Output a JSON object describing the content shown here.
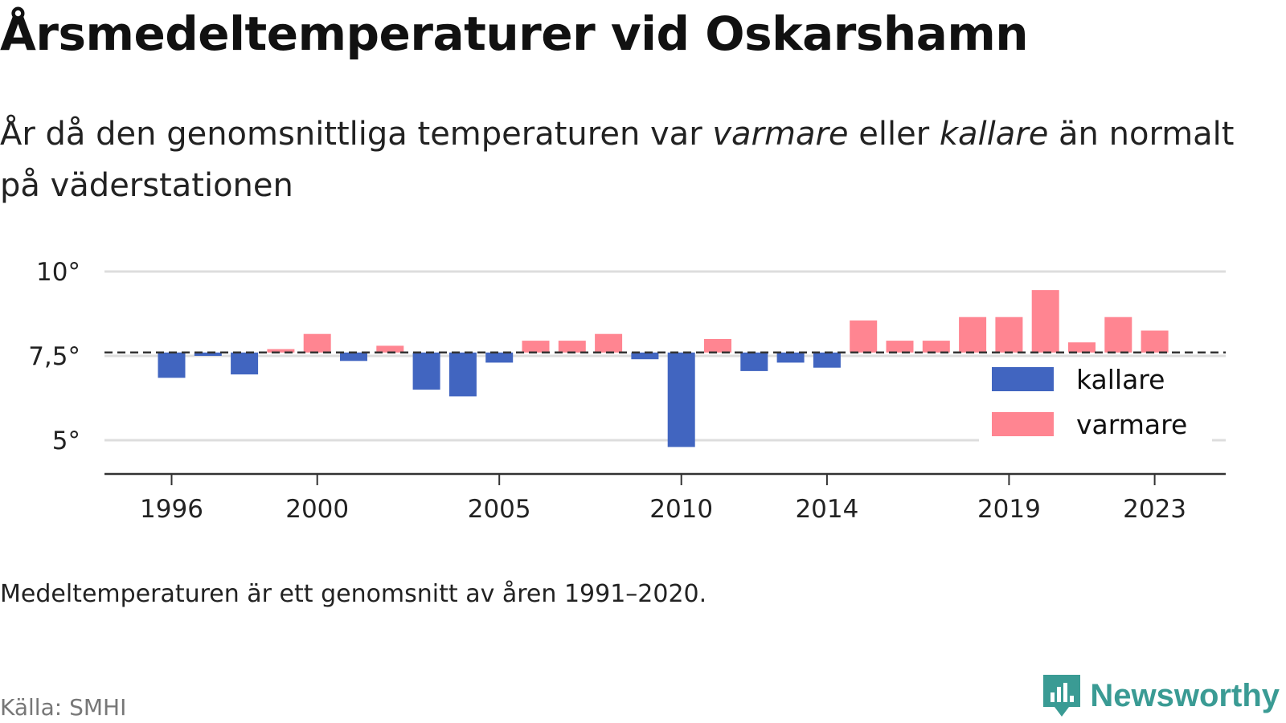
{
  "header": {
    "title": "Årsmedeltemperaturer vid Oskarshamn",
    "subtitle_parts": [
      "År då den genomsnittliga temperaturen var ",
      "varmare",
      " eller ",
      "kallare",
      " än normalt på väderstationen"
    ]
  },
  "footer": {
    "note": "Medeltemperaturen är ett genomsnitt av åren 1991–2020.",
    "source": "Källa: SMHI",
    "brand": "Newsworthy"
  },
  "colors": {
    "kallare": "#4165c0",
    "varmare": "#ff8591",
    "grid": "#dddddd",
    "axis": "#333333",
    "brand": "#3a9b94"
  },
  "chart_data": {
    "type": "bar",
    "title": "Årsmedeltemperaturer vid Oskarshamn",
    "baseline": 7.6,
    "ylim": [
      4.0,
      10.0
    ],
    "y_ticks": [
      5,
      7.5,
      10
    ],
    "y_tick_labels": [
      "5°",
      "7,5°",
      "10°"
    ],
    "x_ticks": [
      "1996",
      "2000",
      "2005",
      "2010",
      "2014",
      "2019",
      "2023"
    ],
    "legend_position": "right",
    "grid": true,
    "legend": [
      {
        "key": "kallare",
        "label": "kallare"
      },
      {
        "key": "varmare",
        "label": "varmare"
      }
    ],
    "x": [
      1996,
      1997,
      1998,
      1999,
      2000,
      2001,
      2002,
      2003,
      2004,
      2005,
      2006,
      2007,
      2008,
      2009,
      2010,
      2011,
      2012,
      2013,
      2014,
      2015,
      2016,
      2017,
      2018,
      2019,
      2020,
      2021,
      2022,
      2023
    ],
    "values": [
      6.85,
      7.5,
      6.95,
      7.7,
      8.15,
      7.35,
      7.8,
      6.5,
      6.3,
      7.3,
      7.95,
      7.95,
      8.15,
      7.4,
      4.8,
      8.0,
      7.05,
      7.3,
      7.15,
      8.55,
      7.95,
      7.95,
      8.65,
      8.65,
      9.45,
      7.9,
      8.65,
      8.25
    ]
  }
}
